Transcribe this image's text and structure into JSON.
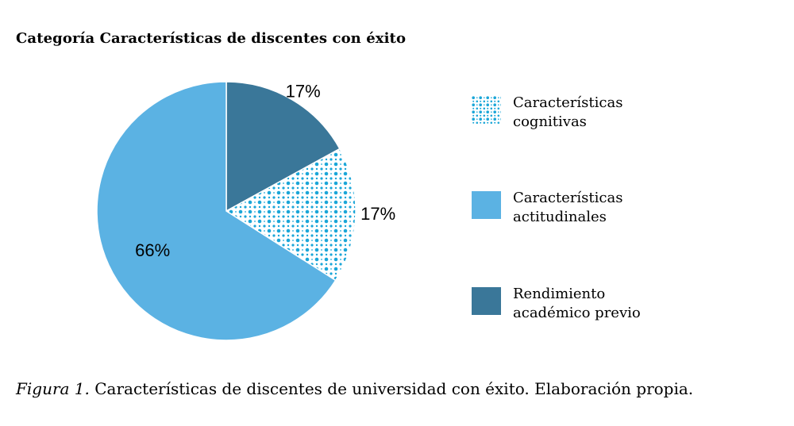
{
  "title": "Categoría Características de discentes con éxito",
  "chart_data": {
    "type": "pie",
    "title": "Categoría Características de discentes con éxito",
    "start": "top, clockwise",
    "slices": [
      {
        "label": "Rendimiento académico previo",
        "value": 17,
        "display": "17%",
        "color": "#3a7799",
        "pattern": "solid"
      },
      {
        "label": "Características cognitivas",
        "value": 17,
        "display": "17%",
        "color": "#1aa6d8",
        "pattern": "dots"
      },
      {
        "label": "Características actitudinales",
        "value": 66,
        "display": "66%",
        "color": "#5bb2e3",
        "pattern": "solid"
      }
    ]
  },
  "legend": [
    {
      "line1": "Características",
      "line2": "cognitivas",
      "pattern": "dots",
      "color": "#1aa6d8"
    },
    {
      "line1": "Características",
      "line2": "actitudinales",
      "pattern": "solid",
      "color": "#5bb2e3"
    },
    {
      "line1": "Rendimiento",
      "line2": "académico previo",
      "pattern": "solid",
      "color": "#3a7799"
    }
  ],
  "caption": {
    "label": "Figura 1.",
    "text": " Características de discentes de universidad con éxito.  Elaboración propia."
  }
}
